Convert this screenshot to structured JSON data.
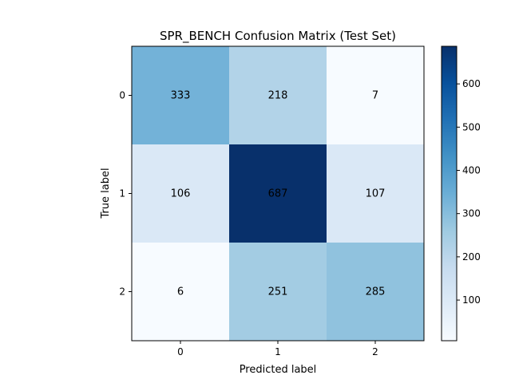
{
  "chart_data": {
    "type": "heatmap",
    "title": "SPR_BENCH Confusion Matrix (Test Set)",
    "xlabel": "Predicted label",
    "ylabel": "True label",
    "x_categories": [
      "0",
      "1",
      "2"
    ],
    "y_categories": [
      "0",
      "1",
      "2"
    ],
    "matrix": [
      [
        333,
        218,
        7
      ],
      [
        106,
        687,
        107
      ],
      [
        6,
        251,
        285
      ]
    ],
    "colormap": "Blues",
    "color_range": [
      6,
      687
    ],
    "colorbar_ticks": [
      100,
      200,
      300,
      400,
      500,
      600
    ],
    "grid": false
  }
}
